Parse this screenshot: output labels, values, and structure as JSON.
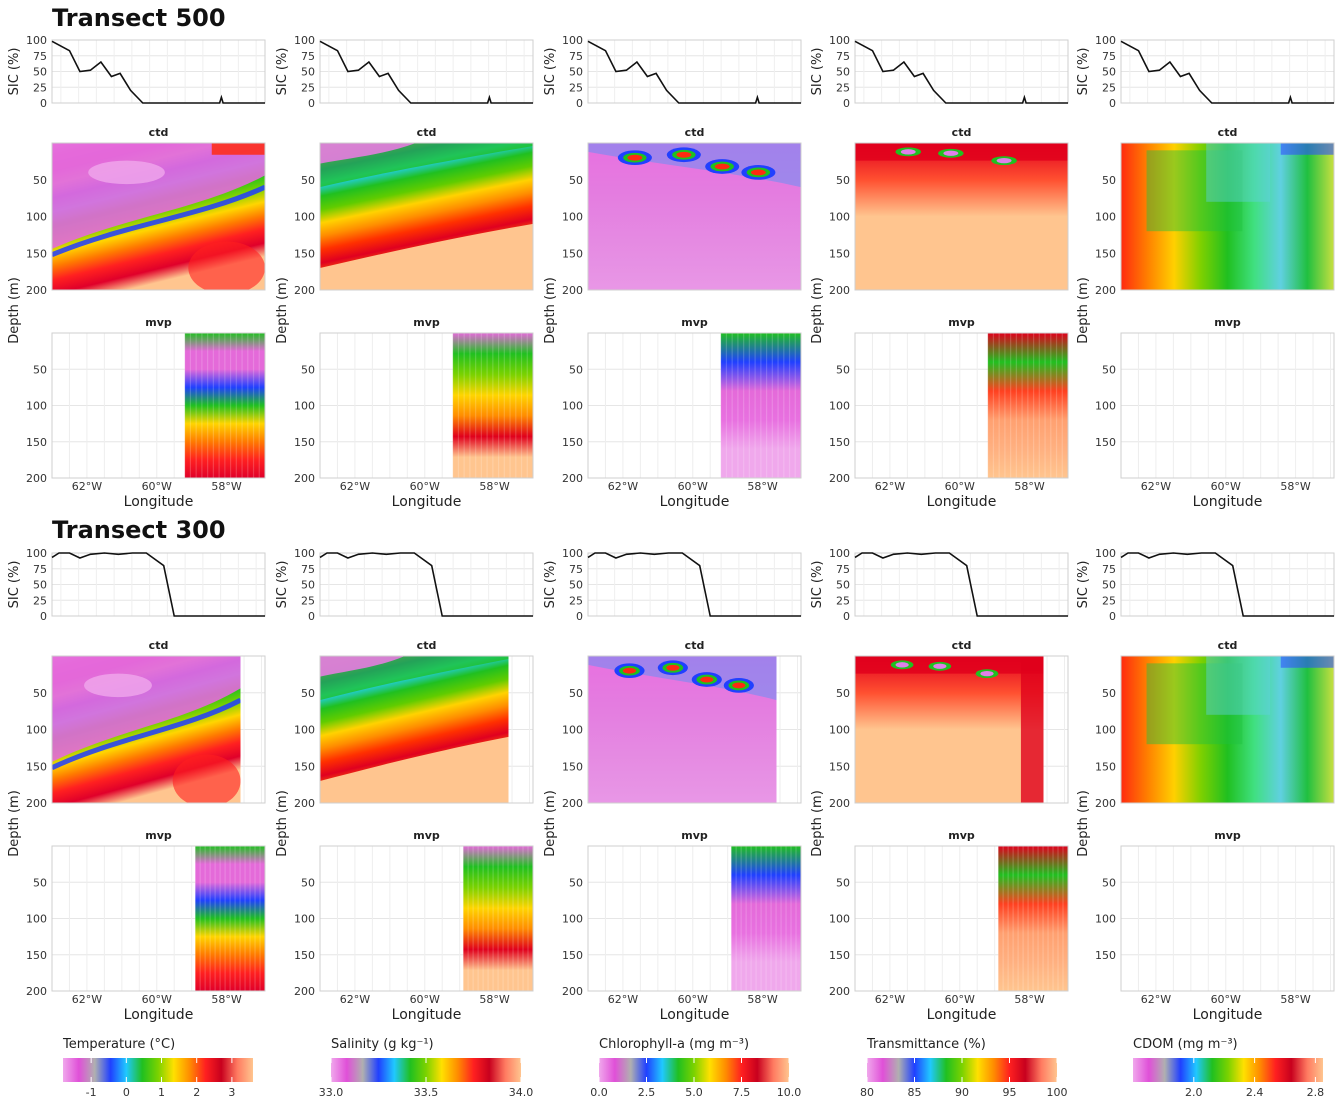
{
  "chart_data": {
    "type": "heatmap",
    "transects": [
      {
        "title": "Transect 500",
        "sic": {
          "ylabel": "SIC (%)",
          "yticks": [
            0,
            25,
            50,
            75,
            100
          ],
          "ylim": [
            0,
            100
          ],
          "xlim": [
            -63.0,
            -56.9
          ],
          "x": [
            -63.0,
            -62.5,
            -62.2,
            -61.9,
            -61.6,
            -61.3,
            -61.05,
            -60.75,
            -60.4,
            -60.0,
            -59.7,
            -59.5,
            -59.35,
            -58.2,
            -58.15,
            -58.1,
            -56.9
          ],
          "y": [
            98,
            83,
            50,
            52,
            65,
            42,
            47,
            20,
            0,
            0,
            0,
            0,
            0,
            0,
            9,
            0,
            0
          ]
        },
        "ctd_title": "ctd",
        "mvp_title": "mvp",
        "mvp_start_lon": -59.2
      },
      {
        "title": "Transect 300",
        "sic": {
          "ylabel": "SIC (%)",
          "yticks": [
            0,
            25,
            50,
            75,
            100
          ],
          "ylim": [
            0,
            100
          ],
          "xlim": [
            -63.0,
            -56.9
          ],
          "x": [
            -63.0,
            -62.8,
            -62.5,
            -62.2,
            -61.9,
            -61.5,
            -61.1,
            -60.7,
            -60.3,
            -59.8,
            -59.5,
            -59.35,
            -56.9
          ],
          "y": [
            93,
            100,
            100,
            92,
            98,
            100,
            98,
            100,
            100,
            80,
            0,
            0,
            0
          ],
          "y_drop_lon": -59.35
        },
        "ctd_title": "ctd",
        "mvp_title": "mvp",
        "ctd_end_lon": -57.6,
        "mvp_start_lon": -58.9
      }
    ],
    "depth_axis": {
      "label": "Depth (m)",
      "ticks": [
        50,
        100,
        150,
        200
      ],
      "ylim": [
        200,
        0
      ]
    },
    "longitude_axis": {
      "label": "Longitude",
      "ticks": [
        "62°W",
        "60°W",
        "58°W"
      ],
      "tick_values": [
        -62,
        -60,
        -58
      ]
    },
    "variables": [
      {
        "name": "Temperature",
        "colorbar_label": "Temperature (°C)",
        "range": [
          -1.8,
          3.6
        ],
        "ticks": [
          "-1",
          "0",
          "1",
          "2",
          "3"
        ],
        "tick_values": [
          -1,
          0,
          1,
          2,
          3
        ]
      },
      {
        "name": "Salinity",
        "colorbar_label": "Salinity (g kg⁻¹)",
        "range": [
          33.0,
          34.0
        ],
        "ticks": [
          "33.0",
          "33.5",
          "34.0"
        ],
        "tick_values": [
          33.0,
          33.5,
          34.0
        ]
      },
      {
        "name": "Chlorophyll-a",
        "colorbar_label": "Chlorophyll-a (mg m⁻³)",
        "range": [
          0,
          10
        ],
        "ticks": [
          "0.0",
          "2.5",
          "5.0",
          "7.5",
          "10.0"
        ],
        "tick_values": [
          0,
          2.5,
          5,
          7.5,
          10
        ]
      },
      {
        "name": "Transmittance",
        "colorbar_label": "Transmittance (%)",
        "range": [
          80,
          100
        ],
        "ticks": [
          "80",
          "85",
          "90",
          "95",
          "100"
        ],
        "tick_values": [
          80,
          85,
          90,
          95,
          100
        ]
      },
      {
        "name": "CDOM",
        "colorbar_label": "CDOM (mg m⁻³)",
        "range": [
          1.6,
          2.85
        ],
        "ticks": [
          "2.0",
          "2.4",
          "2.8"
        ],
        "tick_values": [
          2.0,
          2.4,
          2.8
        ]
      }
    ],
    "colormap": [
      "#ffc58f",
      "#f39c5e",
      "#ff7a00",
      "#ff0000",
      "#c8001e",
      "#e6b400",
      "#fff200",
      "#00c800",
      "#00b7ff",
      "#0028ff",
      "#b0b0b0",
      "#e85fe0",
      "#f0a8ec"
    ]
  }
}
